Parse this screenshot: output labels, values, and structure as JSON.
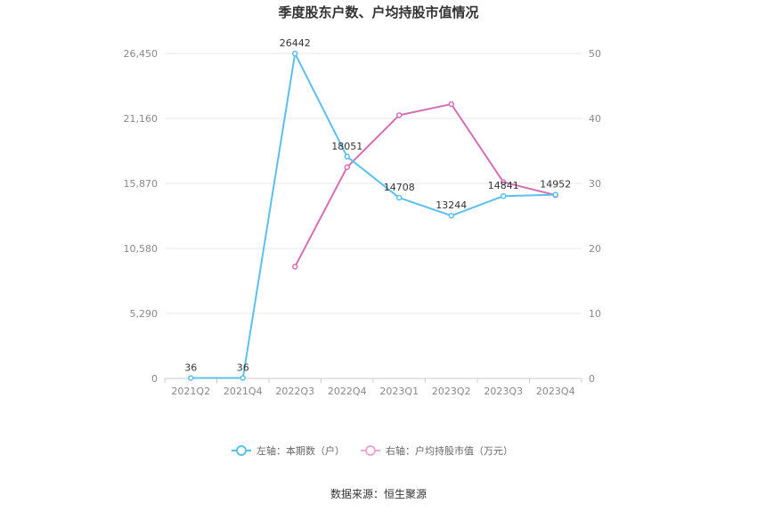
{
  "chart_data": {
    "type": "line",
    "title": "季度股东户数、户均持股市值情况",
    "categories": [
      "2021Q2",
      "2021Q4",
      "2022Q3",
      "2022Q4",
      "2023Q1",
      "2023Q2",
      "2023Q3",
      "2023Q4"
    ],
    "series": [
      {
        "name": "左轴：本期数（户）",
        "axis": "left",
        "color": "#5bc0eb",
        "values": [
          36,
          36,
          26442,
          18051,
          14708,
          13244,
          14841,
          14952
        ],
        "labels": [
          "36",
          "36",
          "26442",
          "18051",
          "14708",
          "13244",
          "14841",
          "14952"
        ]
      },
      {
        "name": "右轴：户均持股市值（万元）",
        "axis": "right",
        "color": "#d36fb5",
        "values": [
          null,
          null,
          17.2,
          32.5,
          40.5,
          42.2,
          30.2,
          28.2
        ]
      }
    ],
    "left_axis": {
      "min": 0,
      "max": 26450,
      "ticks": [
        "0",
        "5,290",
        "10,580",
        "15,870",
        "21,160",
        "26,450"
      ]
    },
    "right_axis": {
      "min": 0,
      "max": 50,
      "ticks": [
        "0",
        "10",
        "20",
        "30",
        "40",
        "50"
      ]
    },
    "grid": true,
    "legend_position": "bottom",
    "source": "数据来源：恒生聚源"
  }
}
